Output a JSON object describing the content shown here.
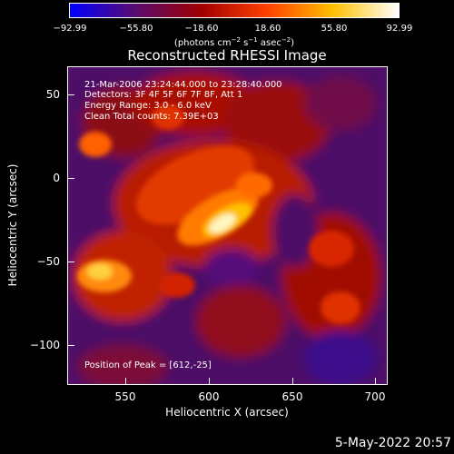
{
  "colorbar": {
    "ticks": [
      "−92.99",
      "−55.80",
      "−18.60",
      "18.60",
      "55.80",
      "92.99"
    ],
    "units_text": "(photons cm",
    "units_sup1": "−2",
    "units_mid1": " s",
    "units_sup2": "−1",
    "units_mid2": " asec",
    "units_sup3": "−2",
    "units_end": ")",
    "colors": [
      "#0000ff",
      "#5a0c6f",
      "#a00000",
      "#ff4000",
      "#ffc000",
      "#ffffff"
    ]
  },
  "title": "Reconstructed RHESSI Image",
  "annotations": {
    "time": "21-Mar-2006 23:24:44.000 to 23:28:40.000",
    "detectors": "Detectors: 3F 4F 5F 6F 7F 8F, Att 1",
    "energy": "Energy Range: 3.0 - 6.0 keV",
    "clean": "Clean    Total counts: 7.39E+03",
    "peak": "Position of Peak = [612,-25]"
  },
  "axes": {
    "xlabel": "Heliocentric X (arcsec)",
    "ylabel": "Heliocentric Y (arcsec)",
    "xticks": [
      "550",
      "600",
      "650",
      "700"
    ],
    "yticks": [
      "50",
      "0",
      "−50",
      "−100"
    ]
  },
  "timestamp": "5-May-2022 20:57"
}
